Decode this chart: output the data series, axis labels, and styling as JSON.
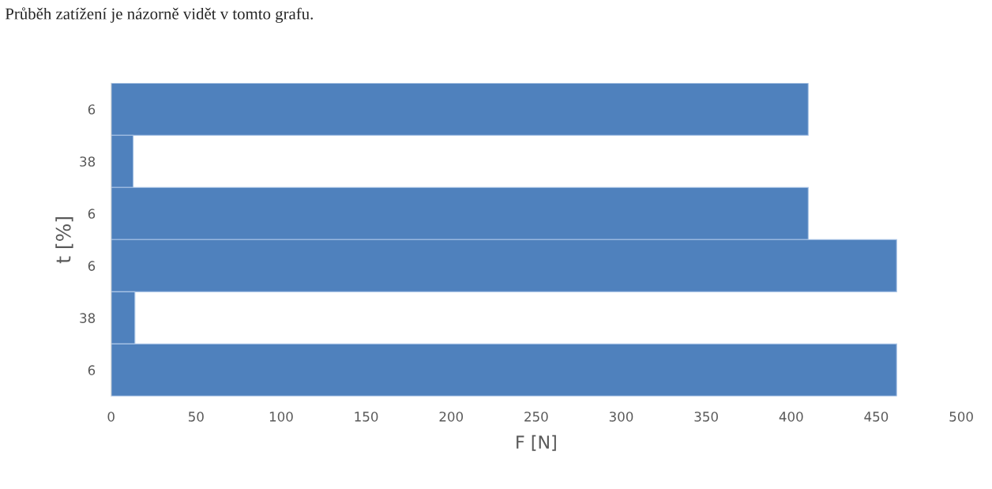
{
  "chart_data": {
    "type": "bar",
    "orientation": "horizontal",
    "categories": [
      "6",
      "38",
      "6",
      "6",
      "38",
      "6"
    ],
    "values": [
      410,
      13,
      410,
      462,
      14,
      462
    ],
    "color": "#4f81bd",
    "xlim": [
      0,
      500
    ],
    "xticks": [
      0,
      50,
      100,
      150,
      200,
      250,
      300,
      350,
      400,
      450,
      500
    ],
    "xlabel": "F [N]",
    "ylabel": "t [%]",
    "grid": false,
    "legend": false,
    "annotations": [
      "Průběh zatížení je názorně vidět v tomto grafu."
    ]
  }
}
